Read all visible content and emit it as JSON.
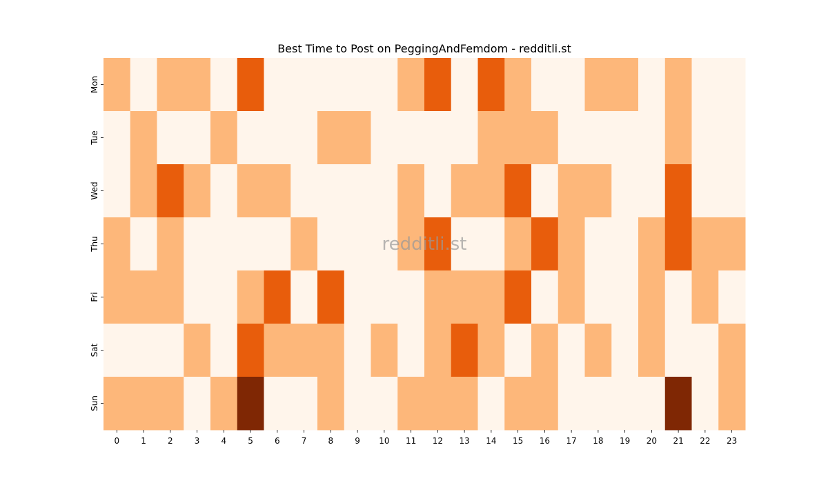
{
  "chart_data": {
    "type": "heatmap",
    "title": "Best Time to Post on PeggingAndFemdom - redditli.st",
    "watermark": "redditli.st",
    "x_categories": [
      "0",
      "1",
      "2",
      "3",
      "4",
      "5",
      "6",
      "7",
      "8",
      "9",
      "10",
      "11",
      "12",
      "13",
      "14",
      "15",
      "16",
      "17",
      "18",
      "19",
      "20",
      "21",
      "22",
      "23"
    ],
    "y_categories": [
      "Mon",
      "Tue",
      "Wed",
      "Thu",
      "Fri",
      "Sat",
      "Sun"
    ],
    "values": [
      [
        1,
        0,
        1,
        1,
        0,
        2,
        0,
        0,
        0,
        0,
        0,
        1,
        2,
        0,
        2,
        1,
        0,
        0,
        1,
        1,
        0,
        1,
        0,
        0
      ],
      [
        0,
        1,
        0,
        0,
        1,
        0,
        0,
        0,
        1,
        1,
        0,
        0,
        0,
        0,
        1,
        1,
        1,
        0,
        0,
        0,
        0,
        1,
        0,
        0
      ],
      [
        0,
        1,
        2,
        1,
        0,
        1,
        1,
        0,
        0,
        0,
        0,
        1,
        0,
        1,
        1,
        2,
        0,
        1,
        1,
        0,
        0,
        2,
        0,
        0
      ],
      [
        1,
        0,
        1,
        0,
        0,
        0,
        0,
        1,
        0,
        0,
        0,
        1,
        2,
        0,
        0,
        1,
        2,
        1,
        0,
        0,
        1,
        2,
        1,
        1
      ],
      [
        1,
        1,
        1,
        0,
        0,
        1,
        2,
        0,
        2,
        0,
        0,
        0,
        1,
        1,
        1,
        2,
        0,
        1,
        0,
        0,
        1,
        0,
        1,
        0
      ],
      [
        0,
        0,
        0,
        1,
        0,
        2,
        1,
        1,
        1,
        0,
        1,
        0,
        1,
        2,
        1,
        0,
        1,
        0,
        1,
        0,
        1,
        0,
        0,
        1
      ],
      [
        1,
        1,
        1,
        0,
        1,
        3,
        0,
        0,
        1,
        0,
        0,
        1,
        1,
        1,
        0,
        1,
        1,
        0,
        0,
        0,
        0,
        3,
        0,
        1
      ]
    ],
    "color_scale": {
      "0": "#fff5eb",
      "1": "#fdb77a",
      "2": "#e85d0c",
      "3": "#7f2704"
    }
  }
}
